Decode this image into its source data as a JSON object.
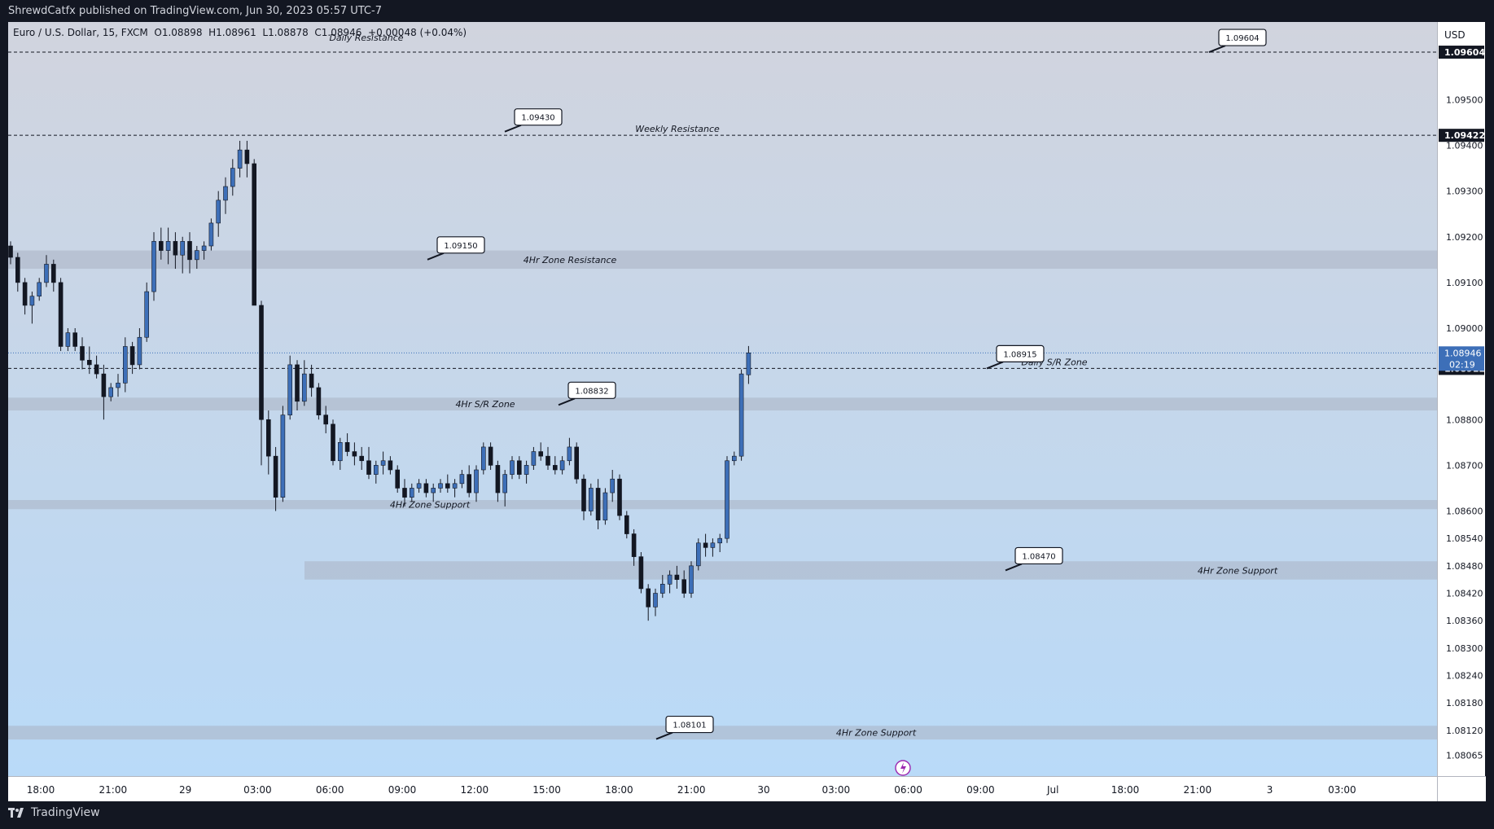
{
  "header": {
    "published": "ShrewdCatfx published on TradingView.com, Jun 30, 2023 05:57 UTC-7"
  },
  "footer": {
    "logo_text": "TradingView"
  },
  "symbol": {
    "name": "Euro / U.S. Dollar, 15, FXCM",
    "open": "O1.08898",
    "high": "H1.08961",
    "low": "L1.08878",
    "close": "C1.08946",
    "change": "+0.00048 (+0.04%)"
  },
  "price_axis": {
    "currency": "USD",
    "ticks": [
      "1.09500",
      "1.09400",
      "1.09300",
      "1.09200",
      "1.09100",
      "1.09000",
      "1.08800",
      "1.08700",
      "1.08600",
      "1.08540",
      "1.08480",
      "1.08420",
      "1.08360",
      "1.08300",
      "1.08240",
      "1.08180",
      "1.08120",
      "1.08065"
    ],
    "current_price": "1.08946",
    "countdown": "02:19",
    "line_labels": [
      "1.09604",
      "1.09422",
      "1.08912"
    ]
  },
  "time_axis": {
    "labels": [
      "18:00",
      "21:00",
      "29",
      "03:00",
      "06:00",
      "09:00",
      "12:00",
      "15:00",
      "18:00",
      "21:00",
      "30",
      "03:00",
      "06:00",
      "09:00",
      "Jul",
      "18:00",
      "21:00",
      "3",
      "03:00"
    ]
  },
  "colors": {
    "bull": "#3d6fb8",
    "bear": "#131722",
    "zone": "#a9b2c3",
    "background_top": "#d1d4de",
    "background_bottom": "#b9daf8"
  },
  "chart_data": {
    "type": "candlestick",
    "ylim": [
      1.0802,
      1.0967
    ],
    "horizontal_lines": [
      {
        "label": "Daily Resistance",
        "price": 1.09604
      },
      {
        "label": "Weekly Resistance",
        "price": 1.09422
      },
      {
        "label": "Daily S/R Zone",
        "price": 1.08912
      }
    ],
    "zones": [
      {
        "label": "4Hr Zone Resistance",
        "low": 1.0913,
        "high": 1.0917
      },
      {
        "label": "4Hr S/R Zone",
        "low": 1.0882,
        "high": 1.08848
      },
      {
        "label": "4Hr Zone Support",
        "low": 1.08604,
        "high": 1.08624
      },
      {
        "label": "4Hr Zone Support",
        "low": 1.0845,
        "high": 1.0849
      },
      {
        "label": "4Hr Zone Support",
        "low": 1.081,
        "high": 1.0813
      }
    ],
    "callouts": [
      "1.09604",
      "1.09430",
      "1.09150",
      "1.08915",
      "1.08832",
      "1.08470",
      "1.08101"
    ],
    "candles": [
      [
        1.0918,
        1.0919,
        1.0914,
        1.09155
      ],
      [
        1.09155,
        1.09165,
        1.0908,
        1.091
      ],
      [
        1.091,
        1.0911,
        1.0903,
        1.0905
      ],
      [
        1.0905,
        1.0908,
        1.0901,
        1.0907
      ],
      [
        1.0907,
        1.0911,
        1.0906,
        1.091
      ],
      [
        1.091,
        1.0916,
        1.0909,
        1.0914
      ],
      [
        1.0914,
        1.0915,
        1.0908,
        1.091
      ],
      [
        1.091,
        1.0911,
        1.0895,
        1.0896
      ],
      [
        1.0896,
        1.09,
        1.0895,
        1.0899
      ],
      [
        1.0899,
        1.09,
        1.0895,
        1.0896
      ],
      [
        1.0896,
        1.0898,
        1.0891,
        1.0893
      ],
      [
        1.0893,
        1.0896,
        1.089,
        1.0892
      ],
      [
        1.0892,
        1.0894,
        1.0889,
        1.089
      ],
      [
        1.089,
        1.0892,
        1.088,
        1.0885
      ],
      [
        1.0885,
        1.0888,
        1.0884,
        1.0887
      ],
      [
        1.0887,
        1.089,
        1.0885,
        1.0888
      ],
      [
        1.0888,
        1.0898,
        1.0886,
        1.0896
      ],
      [
        1.0896,
        1.0897,
        1.089,
        1.0892
      ],
      [
        1.0892,
        1.09,
        1.0891,
        1.0898
      ],
      [
        1.0898,
        1.091,
        1.0897,
        1.0908
      ],
      [
        1.0908,
        1.0921,
        1.0906,
        1.0919
      ],
      [
        1.0919,
        1.0922,
        1.0915,
        1.0917
      ],
      [
        1.0917,
        1.0922,
        1.0914,
        1.0919
      ],
      [
        1.0919,
        1.0921,
        1.0913,
        1.0916
      ],
      [
        1.0916,
        1.092,
        1.0912,
        1.0919
      ],
      [
        1.0919,
        1.0921,
        1.0912,
        1.0915
      ],
      [
        1.0915,
        1.0918,
        1.0913,
        1.0917
      ],
      [
        1.0917,
        1.0919,
        1.0915,
        1.0918
      ],
      [
        1.0918,
        1.0924,
        1.0917,
        1.0923
      ],
      [
        1.0923,
        1.093,
        1.092,
        1.0928
      ],
      [
        1.0928,
        1.0933,
        1.0925,
        1.0931
      ],
      [
        1.0931,
        1.0937,
        1.0929,
        1.0935
      ],
      [
        1.0935,
        1.0941,
        1.0933,
        1.0939
      ],
      [
        1.0939,
        1.0941,
        1.0933,
        1.0936
      ],
      [
        1.0936,
        1.0937,
        1.0905,
        1.0905
      ],
      [
        1.0905,
        1.0906,
        1.087,
        1.088
      ],
      [
        1.088,
        1.0882,
        1.0868,
        1.0872
      ],
      [
        1.0872,
        1.0874,
        1.086,
        1.0863
      ],
      [
        1.0863,
        1.0883,
        1.0862,
        1.0881
      ],
      [
        1.0881,
        1.0894,
        1.088,
        1.0892
      ],
      [
        1.0892,
        1.0893,
        1.0882,
        1.0884
      ],
      [
        1.0884,
        1.0893,
        1.0883,
        1.089
      ],
      [
        1.089,
        1.0892,
        1.0885,
        1.0887
      ],
      [
        1.0887,
        1.0888,
        1.088,
        1.0881
      ],
      [
        1.0881,
        1.0883,
        1.0877,
        1.0879
      ],
      [
        1.0879,
        1.088,
        1.087,
        1.0871
      ],
      [
        1.0871,
        1.0876,
        1.0869,
        1.0875
      ],
      [
        1.0875,
        1.0877,
        1.0872,
        1.0873
      ],
      [
        1.0873,
        1.0875,
        1.087,
        1.0872
      ],
      [
        1.0872,
        1.0874,
        1.0869,
        1.0871
      ],
      [
        1.0871,
        1.0874,
        1.0867,
        1.0868
      ],
      [
        1.0868,
        1.0871,
        1.0866,
        1.087
      ],
      [
        1.087,
        1.0873,
        1.0868,
        1.0871
      ],
      [
        1.0871,
        1.0872,
        1.0868,
        1.0869
      ],
      [
        1.0869,
        1.087,
        1.0864,
        1.0865
      ],
      [
        1.0865,
        1.0867,
        1.0861,
        1.0863
      ],
      [
        1.0863,
        1.0866,
        1.0862,
        1.0865
      ],
      [
        1.0865,
        1.0867,
        1.0864,
        1.0866
      ],
      [
        1.0866,
        1.0867,
        1.0863,
        1.0864
      ],
      [
        1.0864,
        1.0866,
        1.0862,
        1.0865
      ],
      [
        1.0865,
        1.0867,
        1.0864,
        1.0866
      ],
      [
        1.0866,
        1.0868,
        1.0864,
        1.0865
      ],
      [
        1.0865,
        1.0867,
        1.0863,
        1.0866
      ],
      [
        1.0866,
        1.0869,
        1.0865,
        1.0868
      ],
      [
        1.0868,
        1.087,
        1.0863,
        1.0864
      ],
      [
        1.0864,
        1.087,
        1.0862,
        1.0869
      ],
      [
        1.0869,
        1.0875,
        1.0868,
        1.0874
      ],
      [
        1.0874,
        1.0875,
        1.0869,
        1.087
      ],
      [
        1.087,
        1.0871,
        1.0862,
        1.0864
      ],
      [
        1.0864,
        1.0869,
        1.0861,
        1.0868
      ],
      [
        1.0868,
        1.0872,
        1.0867,
        1.0871
      ],
      [
        1.0871,
        1.0872,
        1.0867,
        1.0868
      ],
      [
        1.0868,
        1.0871,
        1.0866,
        1.087
      ],
      [
        1.087,
        1.0874,
        1.0869,
        1.0873
      ],
      [
        1.0873,
        1.0875,
        1.0871,
        1.0872
      ],
      [
        1.0872,
        1.0874,
        1.0869,
        1.087
      ],
      [
        1.087,
        1.0872,
        1.0868,
        1.0869
      ],
      [
        1.0869,
        1.0872,
        1.0868,
        1.0871
      ],
      [
        1.0871,
        1.0876,
        1.087,
        1.0874
      ],
      [
        1.0874,
        1.0875,
        1.0866,
        1.0867
      ],
      [
        1.0867,
        1.0868,
        1.0858,
        1.086
      ],
      [
        1.086,
        1.0866,
        1.0859,
        1.0865
      ],
      [
        1.0865,
        1.0867,
        1.0856,
        1.0858
      ],
      [
        1.0858,
        1.0865,
        1.0857,
        1.0864
      ],
      [
        1.0864,
        1.0869,
        1.0862,
        1.0867
      ],
      [
        1.0867,
        1.0868,
        1.0858,
        1.0859
      ],
      [
        1.0859,
        1.086,
        1.0854,
        1.0855
      ],
      [
        1.0855,
        1.0856,
        1.0848,
        1.085
      ],
      [
        1.085,
        1.0851,
        1.0842,
        1.0843
      ],
      [
        1.0843,
        1.0844,
        1.0836,
        1.0839
      ],
      [
        1.0839,
        1.0843,
        1.0837,
        1.0842
      ],
      [
        1.0842,
        1.0846,
        1.0841,
        1.0844
      ],
      [
        1.0844,
        1.0847,
        1.0842,
        1.0846
      ],
      [
        1.0846,
        1.0848,
        1.0843,
        1.0845
      ],
      [
        1.0845,
        1.0847,
        1.0841,
        1.0842
      ],
      [
        1.0842,
        1.0849,
        1.0841,
        1.0848
      ],
      [
        1.0848,
        1.0854,
        1.0847,
        1.0853
      ],
      [
        1.0853,
        1.0855,
        1.085,
        1.0852
      ],
      [
        1.0852,
        1.0854,
        1.085,
        1.0853
      ],
      [
        1.0853,
        1.0855,
        1.0851,
        1.0854
      ],
      [
        1.0854,
        1.0872,
        1.0853,
        1.0871
      ],
      [
        1.0871,
        1.0873,
        1.087,
        1.0872
      ],
      [
        1.0872,
        1.0891,
        1.0871,
        1.089
      ],
      [
        1.08898,
        1.08961,
        1.08878,
        1.08946
      ]
    ]
  }
}
